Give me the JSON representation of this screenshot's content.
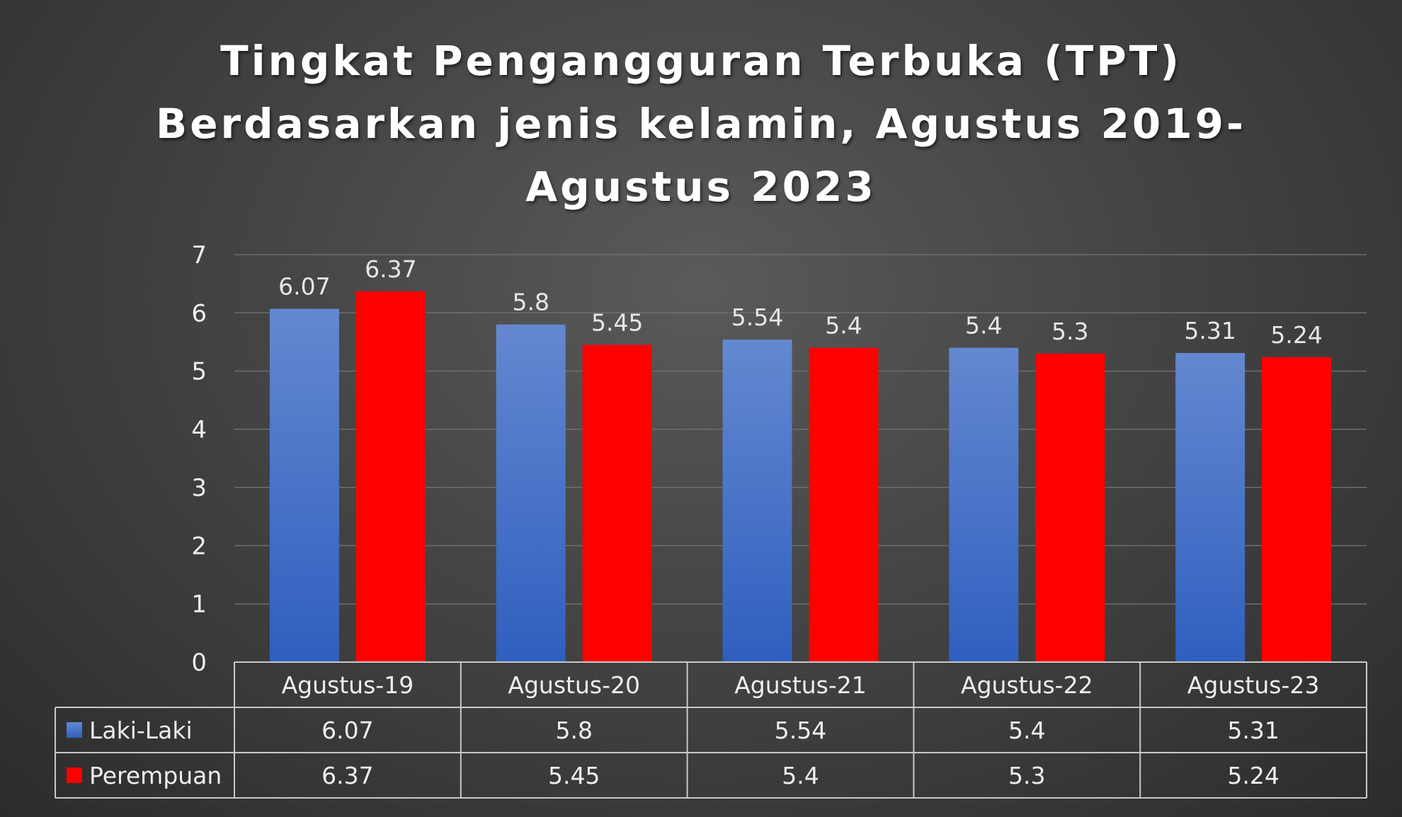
{
  "chart_data": {
    "type": "bar",
    "title_lines": [
      "Tingkat Pengangguran Terbuka (TPT)",
      "Berdasarkan jenis kelamin, Agustus 2019-",
      "Agustus 2023"
    ],
    "categories": [
      "Agustus-19",
      "Agustus-20",
      "Agustus-21",
      "Agustus-22",
      "Agustus-23"
    ],
    "series": [
      {
        "name": "Laki-Laki",
        "color": "#4472C4",
        "values": [
          6.07,
          5.8,
          5.54,
          5.4,
          5.31
        ],
        "labels": [
          "6.07",
          "5.8",
          "5.54",
          "5.4",
          "5.31"
        ]
      },
      {
        "name": "Perempuan",
        "color": "#FF0000",
        "values": [
          6.37,
          5.45,
          5.4,
          5.3,
          5.24
        ],
        "labels": [
          "6.37",
          "5.45",
          "5.4",
          "5.3",
          "5.24"
        ]
      }
    ],
    "yticks": [
      "0",
      "1",
      "2",
      "3",
      "4",
      "5",
      "6",
      "7"
    ],
    "ylim": [
      0,
      7
    ],
    "grid": true,
    "data_table": true,
    "xlabel": "",
    "ylabel": ""
  }
}
